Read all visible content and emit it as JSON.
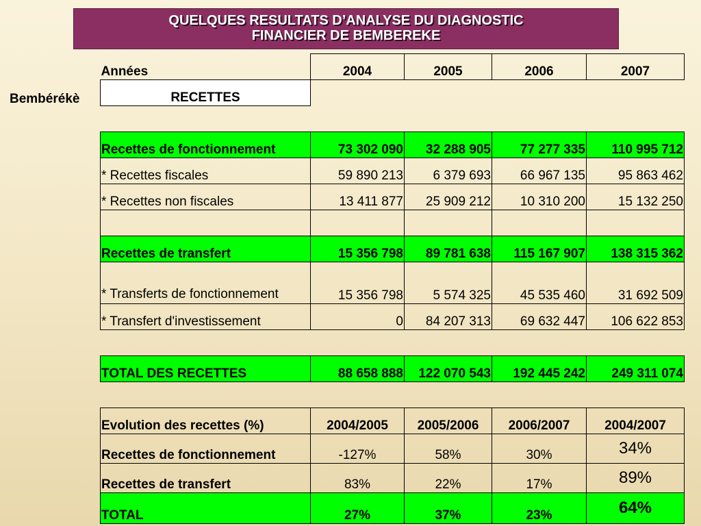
{
  "title": {
    "line1": "QUELQUES RESULTATS D’ANALYSE DU DIAGNOSTIC",
    "line2": "FINANCIER DE BEMBEREKE"
  },
  "side_label": "Bembérékè",
  "header": {
    "label": "Années",
    "years": [
      "2004",
      "2005",
      "2006",
      "2007"
    ],
    "section": "RECETTES"
  },
  "revenue_rows": [
    {
      "label": "Recettes de fonctionnement",
      "values": [
        "73 302 090",
        "32 288 905",
        "77 277 335",
        "110 995 712"
      ]
    },
    {
      "label": "* Recettes fiscales",
      "values": [
        "59 890 213",
        "6 379 693",
        "66 967 135",
        "95 863 462"
      ]
    },
    {
      "label": "* Recettes non fiscales",
      "values": [
        "13 411 877",
        "25 909 212",
        "10 310 200",
        "15 132 250"
      ]
    },
    {
      "label": "Recettes de transfert",
      "values": [
        "15 356 798",
        "89 781 638",
        "115 167 907",
        "138 315 362"
      ]
    },
    {
      "label": "* Transferts de fonctionnement",
      "values": [
        "15 356 798",
        "5 574 325",
        "45 535 460",
        "31 692 509"
      ]
    },
    {
      "label": "* Transfert d'investissement",
      "values": [
        "0",
        "84 207 313",
        "69 632 447",
        "106 622 853"
      ]
    }
  ],
  "total_row": {
    "label": "TOTAL DES RECETTES",
    "values": [
      "88 658 888",
      "122 070 543",
      "192 445 242",
      "249 311 074"
    ]
  },
  "evolution": {
    "header": {
      "label": "Evolution des recettes (%)",
      "periods": [
        "2004/2005",
        "2005/2006",
        "2006/2007",
        "2004/2007"
      ]
    },
    "rows": [
      {
        "label": "Recettes de fonctionnement",
        "values": [
          "-127%",
          "58%",
          "30%",
          "34%"
        ]
      },
      {
        "label": "Recettes de transfert",
        "values": [
          "83%",
          "22%",
          "17%",
          "89%"
        ]
      },
      {
        "label": "TOTAL",
        "values": [
          "27%",
          "37%",
          "23%",
          "64%"
        ]
      }
    ]
  },
  "colors": {
    "title_bg": "#8b2f62",
    "highlight": "#00ff00",
    "background": "#f5ead0"
  }
}
